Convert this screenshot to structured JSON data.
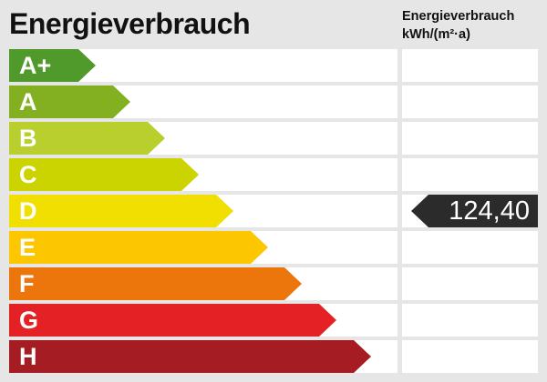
{
  "title": "Energieverbrauch",
  "unit_label": {
    "line1": "Energieverbrauch",
    "line2": "kWh/(m²·a)"
  },
  "classes": [
    {
      "label": "A+",
      "color": "#4f9a2a"
    },
    {
      "label": "A",
      "color": "#83b021"
    },
    {
      "label": "B",
      "color": "#b9cf2e"
    },
    {
      "label": "C",
      "color": "#cbd400"
    },
    {
      "label": "D",
      "color": "#f0df00"
    },
    {
      "label": "E",
      "color": "#fcc600"
    },
    {
      "label": "F",
      "color": "#ec760c"
    },
    {
      "label": "G",
      "color": "#e42125"
    },
    {
      "label": "H",
      "color": "#a51c22"
    }
  ],
  "value": {
    "text": "124,40",
    "class": "D",
    "color": "#2b2b2b"
  }
}
